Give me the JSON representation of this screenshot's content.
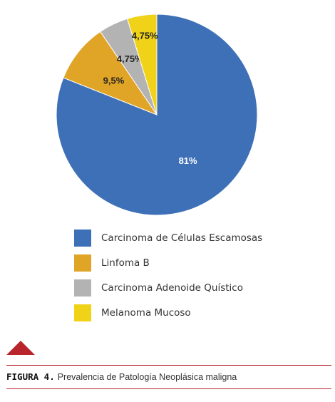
{
  "chart_data": {
    "type": "pie",
    "slices": [
      {
        "name": "Carcinoma de Células Escamosas",
        "value": 81,
        "label": "81%",
        "color": "#3e70b8"
      },
      {
        "name": "Linfoma B",
        "value": 9.5,
        "label": "9,5%",
        "color": "#e0a526"
      },
      {
        "name": "Carcinoma Adenoide Quístico",
        "value": 4.75,
        "label": "4,75%",
        "color": "#b3b3b3"
      },
      {
        "name": "Melanoma Mucoso",
        "value": 4.75,
        "label": "4,75%",
        "color": "#f0d219"
      }
    ],
    "legend_position": "bottom",
    "start": "top, clockwise"
  },
  "caption": {
    "label": "FIGURA 4.",
    "text": "Prevalencia de Patología Neoplásica maligna"
  },
  "colors": {
    "accent": "#b8252c"
  }
}
